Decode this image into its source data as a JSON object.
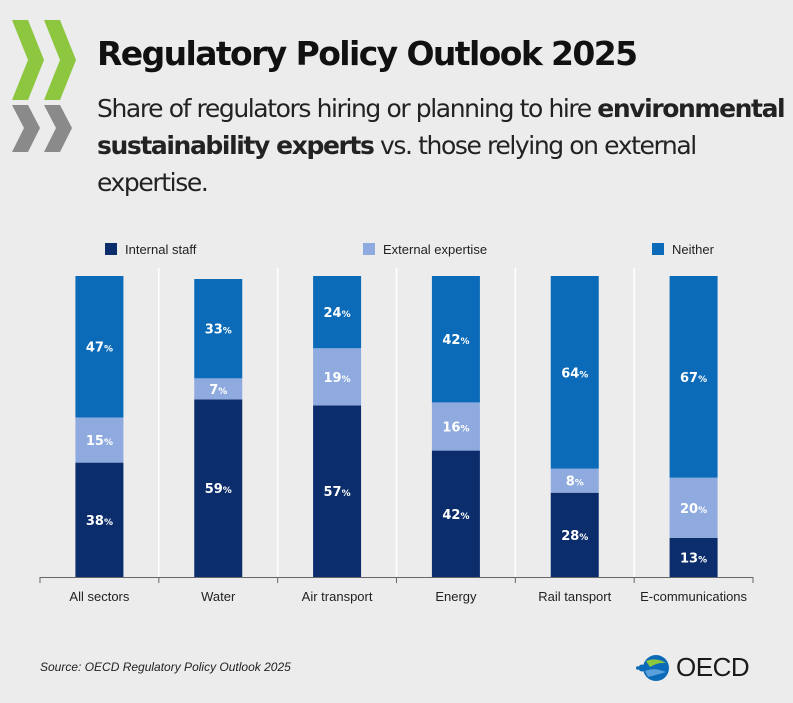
{
  "header": {
    "title": "Regulatory Policy Outlook 2025",
    "subtitle_part1": "Share of regulators hiring or planning to hire ",
    "subtitle_bold": "environmental sustainability experts",
    "subtitle_part2": " vs. those relying on external expertise."
  },
  "colors": {
    "internal": "#0b2d6b",
    "external": "#8eaadf",
    "neither": "#0b6bb8",
    "chevron_green": "#8dc63f",
    "chevron_gray": "#8a8a8a"
  },
  "chart_data": {
    "type": "bar",
    "stacked": true,
    "orientation": "vertical",
    "categories": [
      "All sectors",
      "Water",
      "Air transport",
      "Energy",
      "Rail tansport",
      "E-communications"
    ],
    "series": [
      {
        "name": "Internal staff",
        "values": [
          38,
          59,
          57,
          42,
          28,
          13
        ]
      },
      {
        "name": "External expertise",
        "values": [
          15,
          7,
          19,
          16,
          8,
          20
        ]
      },
      {
        "name": "Neither",
        "values": [
          47,
          33,
          24,
          42,
          64,
          67
        ]
      }
    ],
    "data_label_suffix": "%",
    "ylim": [
      0,
      100
    ],
    "legend_position": "top",
    "grid": false
  },
  "footer": {
    "source": "Source: OECD Regulatory Policy Outlook 2025",
    "logo_text": "OECD"
  }
}
